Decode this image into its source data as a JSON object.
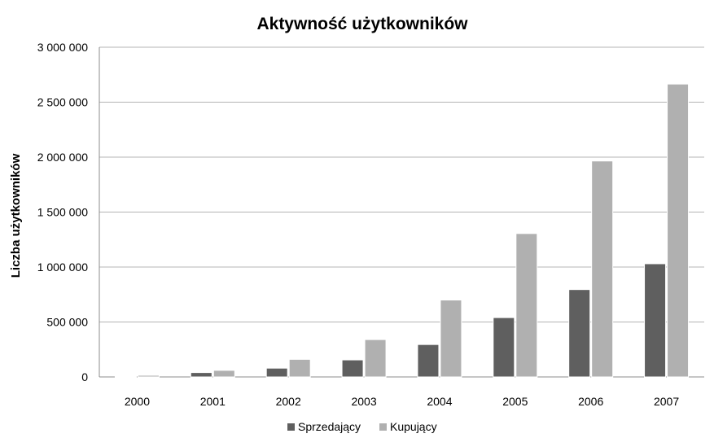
{
  "chart_data": {
    "type": "bar",
    "title": "Aktywność użytkowników",
    "xlabel": "",
    "ylabel": "Liczba użytkowników",
    "categories": [
      "2000",
      "2001",
      "2002",
      "2003",
      "2004",
      "2005",
      "2006",
      "2007"
    ],
    "series": [
      {
        "name": "Sprzedający",
        "color": "#5f5f5f",
        "values": [
          5000,
          40000,
          80000,
          155000,
          295000,
          540000,
          795000,
          1030000
        ]
      },
      {
        "name": "Kupujący",
        "color": "#b0b0b0",
        "values": [
          15000,
          60000,
          160000,
          340000,
          700000,
          1305000,
          1965000,
          2665000
        ]
      }
    ],
    "ylim": [
      0,
      3000000
    ],
    "yticks": [
      0,
      500000,
      1000000,
      1500000,
      2000000,
      2500000,
      3000000
    ],
    "ytick_labels": [
      "0",
      "500 000",
      "1 000 000",
      "1 500 000",
      "2 000 000",
      "2 500 000",
      "3 000 000"
    ],
    "grid": true,
    "legend_position": "bottom"
  }
}
